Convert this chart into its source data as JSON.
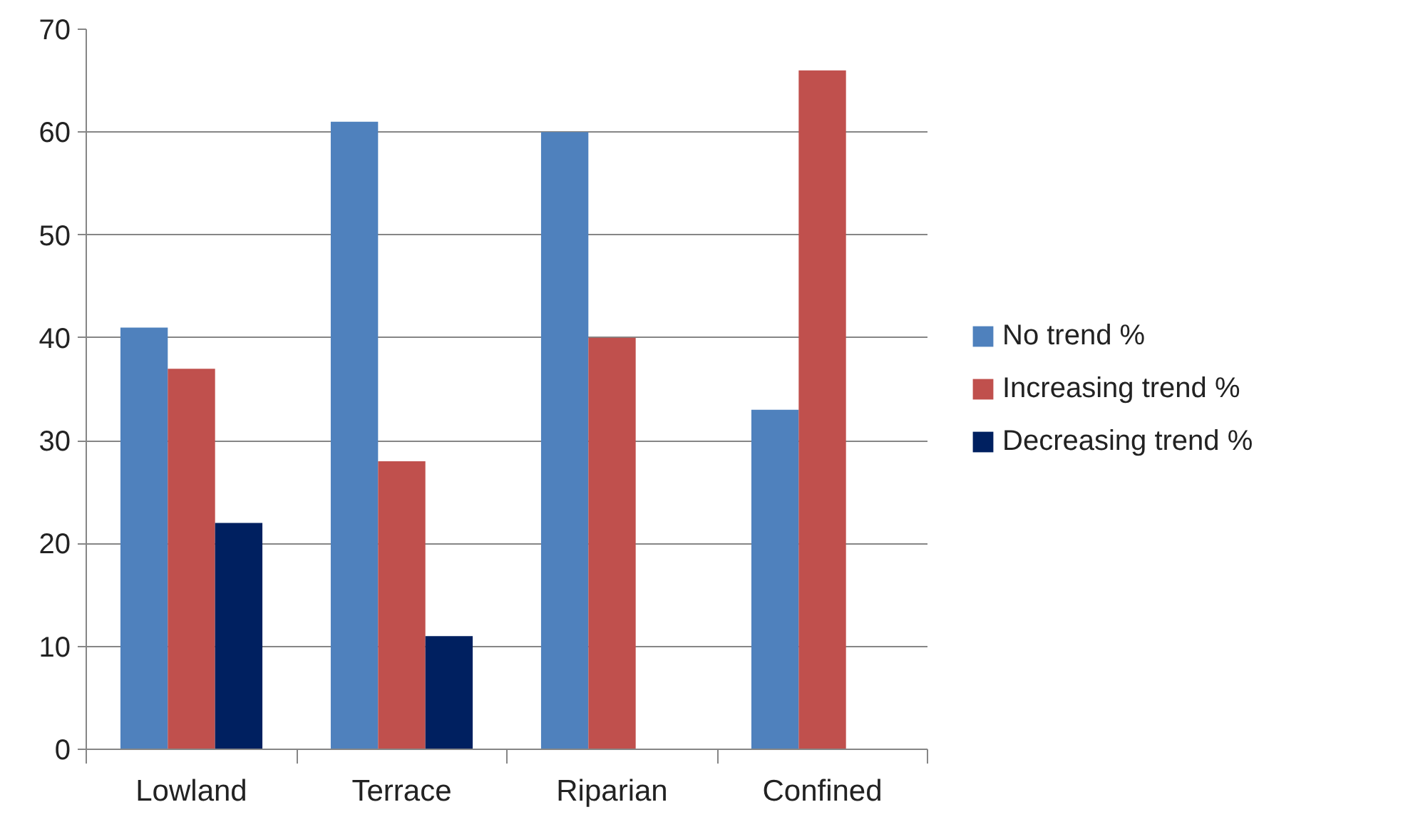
{
  "chart_data": {
    "type": "bar",
    "categories": [
      "Lowland",
      "Terrace",
      "Riparian",
      "Confined"
    ],
    "series": [
      {
        "name": "No trend %",
        "color": "#4f81bd",
        "values": [
          41,
          61,
          60,
          33
        ]
      },
      {
        "name": "Increasing trend %",
        "color": "#c0504d",
        "values": [
          37,
          28,
          40,
          66
        ]
      },
      {
        "name": "Decreasing trend %",
        "color": "#002060",
        "values": [
          22,
          11,
          null,
          null
        ]
      }
    ],
    "ylim": [
      0,
      70
    ],
    "yticks": [
      0,
      10,
      20,
      30,
      40,
      50,
      60,
      70
    ],
    "grid": "y",
    "legend": "right"
  }
}
